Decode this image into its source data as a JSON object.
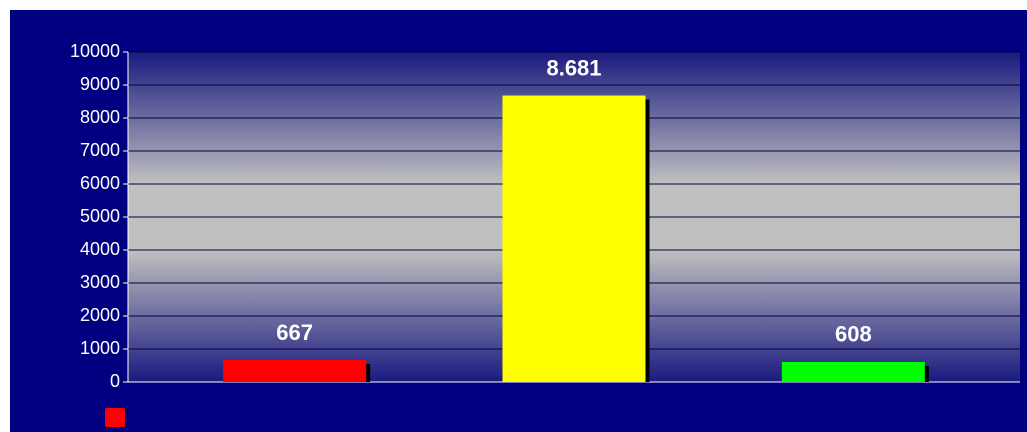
{
  "chart_data": {
    "type": "bar",
    "categories": [
      null,
      null,
      null
    ],
    "values": [
      667,
      8681,
      608
    ],
    "value_labels": [
      "667",
      "8.681",
      "608"
    ],
    "colors": [
      "#ff0000",
      "#ffff00",
      "#00ff00"
    ],
    "ylim": [
      0,
      10000
    ],
    "yticks": [
      0,
      1000,
      2000,
      3000,
      4000,
      5000,
      6000,
      7000,
      8000,
      9000,
      10000
    ],
    "grid": true
  }
}
